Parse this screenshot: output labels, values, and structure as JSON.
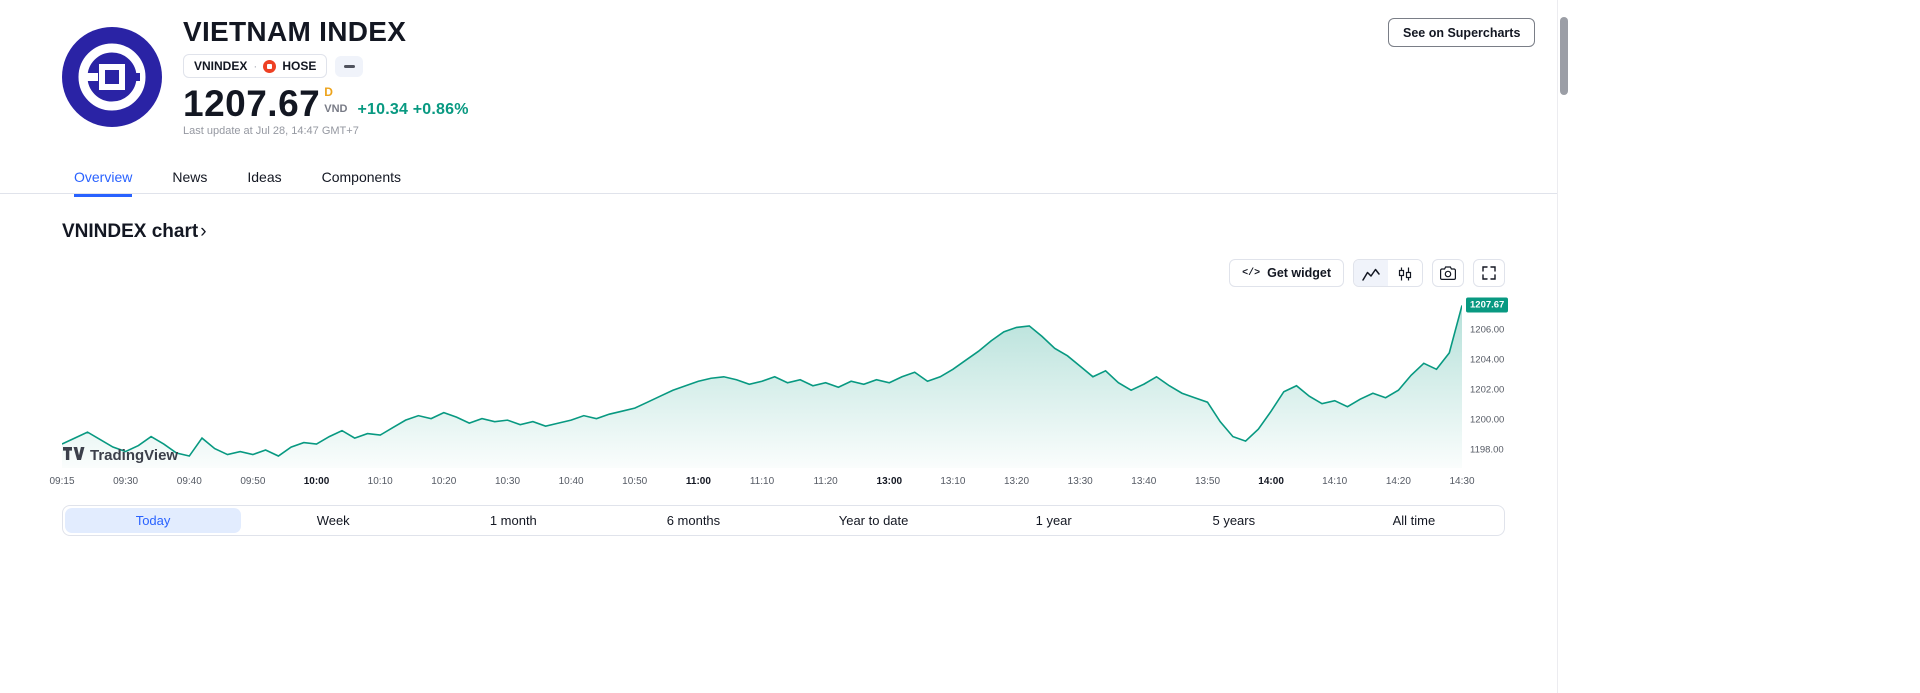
{
  "page": {
    "header": {
      "title": "VIETNAM INDEX",
      "symbol": "VNINDEX",
      "separator": "·",
      "exchange": "HOSE",
      "price": "1207.67",
      "interval_badge": "D",
      "currency": "VND",
      "change_abs": "+10.34",
      "change_pct": "+0.86%",
      "last_update": "Last update at Jul 28, 14:47 GMT+7",
      "supercharts_button": "See on Supercharts"
    },
    "tabs": [
      {
        "label": "Overview",
        "active": true
      },
      {
        "label": "News",
        "active": false
      },
      {
        "label": "Ideas",
        "active": false
      },
      {
        "label": "Components",
        "active": false
      }
    ],
    "section_title": "VNINDEX chart",
    "section_chevron": "›",
    "chart_toolbar": {
      "code_glyph": "</>",
      "get_widget_label": "Get widget"
    },
    "watermark": "TradingView",
    "range_tabs": [
      {
        "label": "Today",
        "active": true
      },
      {
        "label": "Week",
        "active": false
      },
      {
        "label": "1 month",
        "active": false
      },
      {
        "label": "6 months",
        "active": false
      },
      {
        "label": "Year to date",
        "active": false
      },
      {
        "label": "1 year",
        "active": false
      },
      {
        "label": "5 years",
        "active": false
      },
      {
        "label": "All time",
        "active": false
      }
    ],
    "colors": {
      "accent_blue": "#2962ff",
      "up_green": "#089981",
      "interval_amber": "#eda31b",
      "text": "#131722",
      "muted": "#787b86",
      "border": "#e0e3eb",
      "logo_indigo": "#2a23a5",
      "exchange_red": "#ee4023"
    }
  },
  "chart_data": {
    "type": "area",
    "title": "VNINDEX intraday price",
    "x_labels": [
      "09:15",
      "09:30",
      "09:40",
      "09:50",
      "10:00",
      "10:10",
      "10:20",
      "10:30",
      "10:40",
      "10:50",
      "11:00",
      "11:10",
      "11:20",
      "13:00",
      "13:10",
      "13:20",
      "13:30",
      "13:40",
      "13:50",
      "14:00",
      "14:10",
      "14:20",
      "14:30"
    ],
    "major_x_labels": [
      "10:00",
      "11:00",
      "13:00",
      "14:00"
    ],
    "values": [
      1198.4,
      1198.8,
      1199.2,
      1198.7,
      1198.2,
      1197.9,
      1198.3,
      1198.9,
      1198.4,
      1197.8,
      1197.6,
      1198.8,
      1198.1,
      1197.7,
      1197.9,
      1197.7,
      1198.0,
      1197.6,
      1198.2,
      1198.5,
      1198.4,
      1198.9,
      1199.3,
      1198.8,
      1199.1,
      1199.0,
      1199.5,
      1200.0,
      1200.3,
      1200.1,
      1200.5,
      1200.2,
      1199.8,
      1200.1,
      1199.9,
      1200.0,
      1199.7,
      1199.9,
      1199.6,
      1199.8,
      1200.0,
      1200.3,
      1200.1,
      1200.4,
      1200.6,
      1200.8,
      1201.2,
      1201.6,
      1202.0,
      1202.3,
      1202.6,
      1202.8,
      1202.9,
      1202.7,
      1202.4,
      1202.6,
      1202.9,
      1202.5,
      1202.7,
      1202.3,
      1202.5,
      1202.2,
      1202.6,
      1202.4,
      1202.7,
      1202.5,
      1202.9,
      1203.2,
      1202.6,
      1202.9,
      1203.4,
      1204.0,
      1204.6,
      1205.3,
      1205.9,
      1206.2,
      1206.3,
      1205.6,
      1204.8,
      1204.3,
      1203.6,
      1202.9,
      1203.3,
      1202.5,
      1202.0,
      1202.4,
      1202.9,
      1202.3,
      1201.8,
      1201.5,
      1201.2,
      1199.9,
      1198.9,
      1198.6,
      1199.4,
      1200.6,
      1201.9,
      1202.3,
      1201.6,
      1201.1,
      1201.3,
      1200.9,
      1201.4,
      1201.8,
      1201.5,
      1202.0,
      1203.0,
      1203.8,
      1203.4,
      1204.5,
      1207.67
    ],
    "ylim": [
      1196.8,
      1208.3
    ],
    "y_axis_ticks": [
      1206,
      1204,
      1202,
      1200,
      1198
    ],
    "last_price": 1207.67,
    "line_color": "#089981",
    "badge_color": "#089981",
    "fill_top_opacity": 0.3,
    "fill_bottom_opacity": 0.02,
    "grid": false,
    "legend": false
  }
}
